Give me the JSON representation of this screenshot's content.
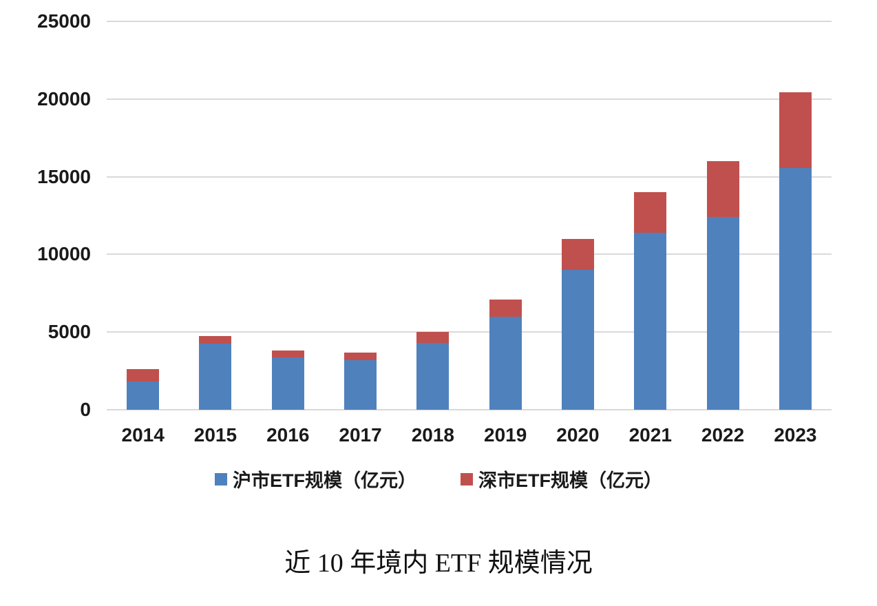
{
  "chart_data": {
    "type": "bar",
    "stacked": true,
    "title": "近 10 年境内 ETF 规模情况",
    "categories": [
      "2014",
      "2015",
      "2016",
      "2017",
      "2018",
      "2019",
      "2020",
      "2021",
      "2022",
      "2023"
    ],
    "series": [
      {
        "name": "沪市ETF规模（亿元）",
        "color": "#4F81BD",
        "values": [
          1800,
          4250,
          3350,
          3200,
          4300,
          6000,
          9000,
          11400,
          12400,
          15550
        ]
      },
      {
        "name": "深市ETF规模（亿元）",
        "color": "#C0504D",
        "values": [
          800,
          500,
          450,
          500,
          700,
          1100,
          2000,
          2600,
          3600,
          4900
        ]
      }
    ],
    "xlabel": "",
    "ylabel": "",
    "ylim": [
      0,
      25000
    ],
    "ytick_interval": 5000,
    "yticks": [
      0,
      5000,
      10000,
      15000,
      20000,
      25000
    ],
    "grid": "horizontal",
    "legend_position": "bottom",
    "colors": {
      "gridline": "#D9D9D9",
      "text": "#1A1A1A",
      "background": "#FFFFFF"
    }
  }
}
